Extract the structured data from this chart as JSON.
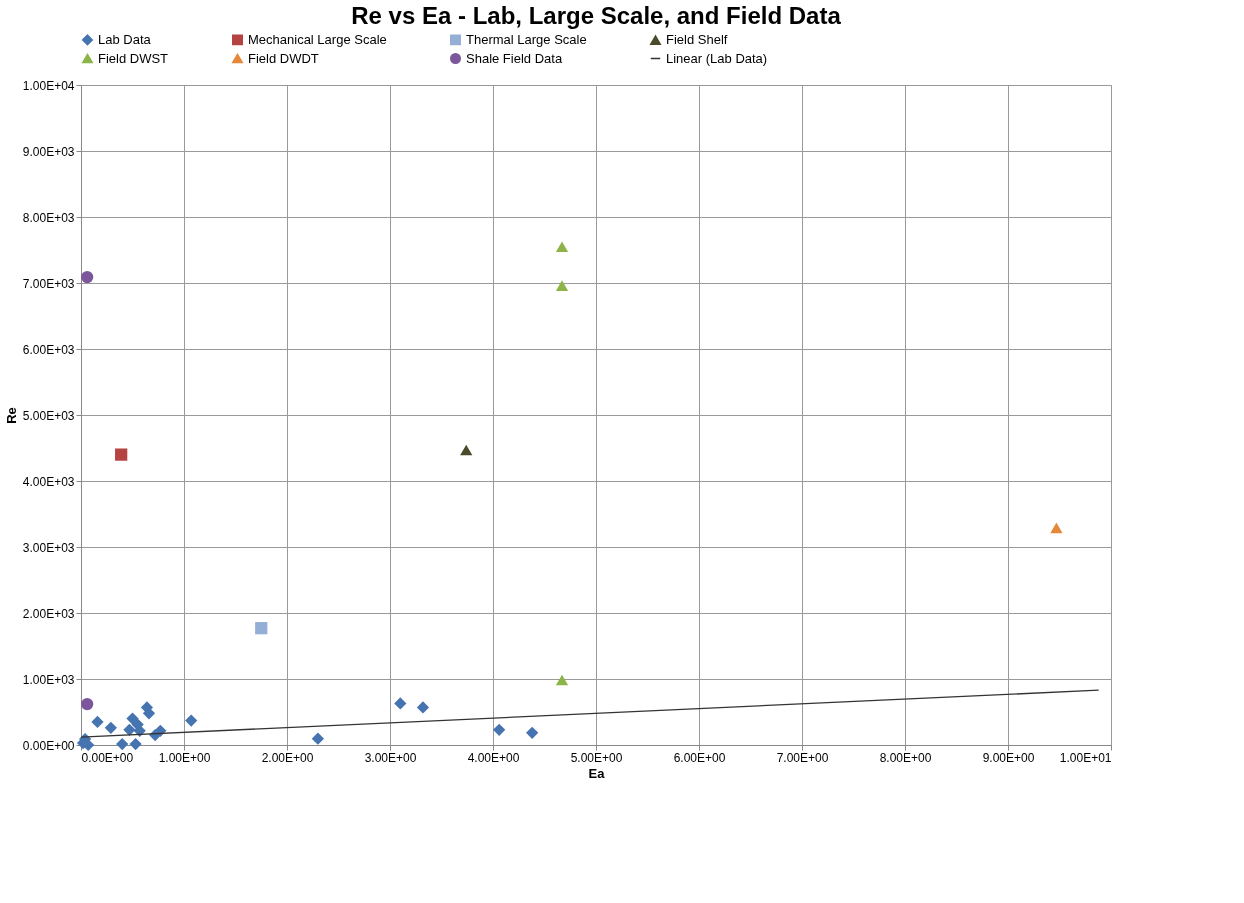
{
  "chart_data": {
    "type": "scatter",
    "title": "Re vs Ea - Lab, Large Scale, and Field Data",
    "xlabel": "Ea",
    "ylabel": "Re",
    "xlim": [
      0,
      10
    ],
    "ylim": [
      0,
      10000
    ],
    "grid": true,
    "legend": "top",
    "xticks": [
      {
        "value": 0,
        "label": "0.00E+00"
      },
      {
        "value": 1,
        "label": "1.00E+00"
      },
      {
        "value": 2,
        "label": "2.00E+00"
      },
      {
        "value": 3,
        "label": "3.00E+00"
      },
      {
        "value": 4,
        "label": "4.00E+00"
      },
      {
        "value": 5,
        "label": "5.00E+00"
      },
      {
        "value": 6,
        "label": "6.00E+00"
      },
      {
        "value": 7,
        "label": "7.00E+00"
      },
      {
        "value": 8,
        "label": "8.00E+00"
      },
      {
        "value": 9,
        "label": "9.00E+00"
      },
      {
        "value": 10,
        "label": "1.00E+01"
      }
    ],
    "yticks": [
      {
        "value": 0,
        "label": "0.00E+00"
      },
      {
        "value": 1000,
        "label": "1.00E+03"
      },
      {
        "value": 2000,
        "label": "2.00E+03"
      },
      {
        "value": 3000,
        "label": "3.00E+03"
      },
      {
        "value": 4000,
        "label": "4.00E+03"
      },
      {
        "value": 5000,
        "label": "5.00E+03"
      },
      {
        "value": 6000,
        "label": "6.00E+03"
      },
      {
        "value": 7000,
        "label": "7.00E+03"
      },
      {
        "value": 8000,
        "label": "8.00E+03"
      },
      {
        "value": 9000,
        "label": "9.00E+03"
      },
      {
        "value": 10000,
        "label": "1.00E+04"
      }
    ],
    "series": [
      {
        "name": "Lab Data",
        "marker": "diamond",
        "color": "#4674b0",
        "x": [
          0.02,
          0.04,
          0.07,
          0.16,
          0.29,
          0.4,
          0.53,
          0.64,
          0.66,
          0.5,
          0.47,
          0.55,
          0.57,
          0.72,
          0.77,
          1.07,
          2.3,
          3.1,
          3.32,
          4.06,
          4.38
        ],
        "values": [
          30,
          90,
          0,
          350,
          260,
          15,
          15,
          570,
          480,
          400,
          230,
          310,
          215,
          150,
          215,
          370,
          95,
          630,
          570,
          230,
          185
        ]
      },
      {
        "name": "Mechanical Large Scale",
        "marker": "square",
        "color": "#b54341",
        "x": [
          0.39
        ],
        "values": [
          4400
        ]
      },
      {
        "name": "Thermal Large Scale",
        "marker": "square",
        "color": "#94aed6",
        "x": [
          1.75
        ],
        "values": [
          1770
        ]
      },
      {
        "name": "Field Shelf",
        "marker": "triangle",
        "color": "#4b4a2b",
        "x": [
          3.74
        ],
        "values": [
          4470
        ]
      },
      {
        "name": "Field DWST",
        "marker": "triangle",
        "color": "#8cb448",
        "x": [
          4.67,
          4.67,
          4.67
        ],
        "values": [
          7550,
          6960,
          985
        ]
      },
      {
        "name": "Field DWDT",
        "marker": "triangle",
        "color": "#e6883a",
        "x": [
          9.47
        ],
        "values": [
          3290
        ]
      },
      {
        "name": "Shale Field Data",
        "marker": "circle",
        "color": "#7b569c",
        "x": [
          0.06,
          0.06
        ],
        "values": [
          7090,
          620
        ]
      },
      {
        "name": "Linear (Lab Data)",
        "type": "line",
        "marker": "none",
        "color": "#333333",
        "x": [
          0,
          9.88
        ],
        "values": [
          120,
          830
        ]
      }
    ]
  }
}
